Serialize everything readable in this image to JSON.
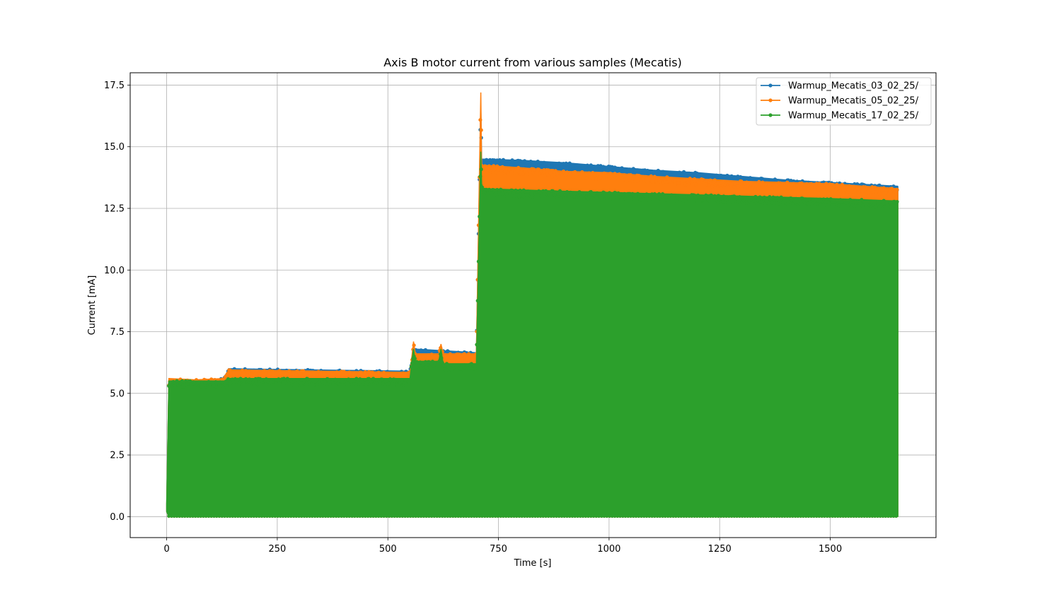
{
  "chart_data": {
    "type": "line",
    "title": "Axis B motor current from various samples (Mecatis)",
    "xlabel": "Time [s]",
    "ylabel": "Current [mA]",
    "xlim": [
      -82.5,
      1739
    ],
    "ylim": [
      -0.85,
      18.0
    ],
    "x_ticks": [
      0,
      250,
      500,
      750,
      1000,
      1250,
      1500
    ],
    "x_tick_labels": [
      "0",
      "250",
      "500",
      "750",
      "1000",
      "1250",
      "1500"
    ],
    "y_ticks": [
      0.0,
      2.5,
      5.0,
      7.5,
      10.0,
      12.5,
      15.0,
      17.5
    ],
    "y_tick_labels": [
      "0.0",
      "2.5",
      "5.0",
      "7.5",
      "10.0",
      "12.5",
      "15.0",
      "17.5"
    ],
    "grid": true,
    "legend_position": "upper right",
    "marker": "circle",
    "series": [
      {
        "name": "Warmup_Mecatis_03_02_25/",
        "color": "#1f77b4",
        "envelope_x": [
          0,
          5,
          65,
          130,
          140,
          550,
          555,
          560,
          700,
          710,
          712,
          715,
          800,
          900,
          1000,
          1100,
          1200,
          1300,
          1400,
          1500,
          1652
        ],
        "envelope_max": [
          0.5,
          5.5,
          5.5,
          5.6,
          6.0,
          5.9,
          6.4,
          6.8,
          6.65,
          16.7,
          14.5,
          14.5,
          14.45,
          14.35,
          14.2,
          14.05,
          13.95,
          13.8,
          13.65,
          13.55,
          13.4
        ],
        "envelope_min": [
          0.2,
          0.0,
          0.0,
          0.0,
          0.0,
          0.0,
          0.0,
          0.0,
          0.0,
          0.0,
          0.0,
          0.0,
          0.0,
          0.0,
          0.0,
          0.0,
          0.0,
          0.0,
          0.0,
          0.0,
          0.0
        ]
      },
      {
        "name": "Warmup_Mecatis_05_02_25/",
        "color": "#ff7f0e",
        "envelope_x": [
          0,
          5,
          65,
          130,
          140,
          550,
          555,
          558,
          562,
          615,
          620,
          625,
          700,
          710,
          712,
          715,
          800,
          900,
          1000,
          1100,
          1200,
          1300,
          1400,
          1500,
          1652
        ],
        "envelope_max": [
          0.5,
          5.6,
          5.55,
          5.6,
          5.95,
          5.85,
          6.6,
          7.1,
          6.6,
          6.6,
          7.0,
          6.6,
          6.6,
          17.2,
          14.3,
          14.25,
          14.15,
          14.0,
          13.95,
          13.8,
          13.7,
          13.6,
          13.55,
          13.5,
          13.3
        ],
        "envelope_min": [
          0.2,
          0.0,
          0.0,
          0.0,
          0.0,
          0.0,
          0.0,
          0.0,
          0.0,
          0.0,
          0.0,
          0.0,
          0.0,
          0.0,
          0.0,
          0.0,
          0.0,
          0.0,
          0.0,
          0.0,
          0.0,
          0.0,
          0.0,
          0.0,
          0.0
        ]
      },
      {
        "name": "Warmup_Mecatis_17_02_25/",
        "color": "#2ca02c",
        "envelope_x": [
          0,
          5,
          65,
          130,
          140,
          550,
          555,
          558,
          562,
          615,
          620,
          625,
          700,
          710,
          712,
          715,
          800,
          900,
          1000,
          1100,
          1200,
          1300,
          1400,
          1500,
          1652
        ],
        "envelope_max": [
          0.5,
          5.5,
          5.5,
          5.5,
          5.6,
          5.6,
          6.4,
          6.8,
          6.3,
          6.3,
          6.8,
          6.2,
          6.2,
          14.8,
          13.5,
          13.3,
          13.25,
          13.2,
          13.15,
          13.1,
          13.05,
          13.0,
          12.95,
          12.9,
          12.8
        ],
        "envelope_min": [
          0.2,
          0.0,
          0.0,
          0.0,
          0.0,
          0.0,
          0.0,
          0.0,
          0.0,
          0.0,
          0.0,
          0.0,
          0.0,
          0.0,
          0.0,
          0.0,
          0.0,
          0.0,
          0.0,
          0.0,
          0.0,
          0.0,
          0.0,
          0.0,
          0.0
        ]
      }
    ]
  }
}
